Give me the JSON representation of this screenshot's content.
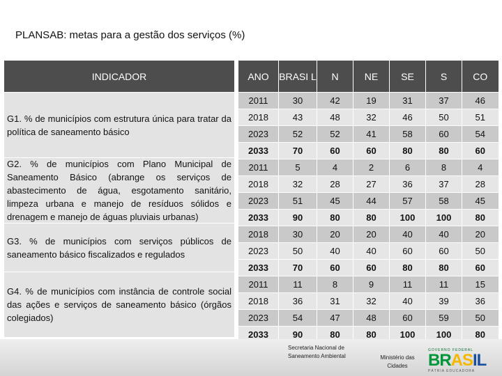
{
  "title": "PLANSAB: metas para a gestão dos serviços (%)",
  "table": {
    "indicator_header": "INDICADOR",
    "headers": [
      "ANO",
      "BRASI L",
      "N",
      "NE",
      "SE",
      "S",
      "CO"
    ],
    "indicators": [
      {
        "text": "G1. % de municípios com estrutura única para tratar da política de saneamento básico"
      },
      {
        "text": "G2. % de municípios com Plano Municipal de Saneamento Básico (abrange os serviços de abastecimento de água, esgotamento sanitário, limpeza urbana e manejo de resíduos sólidos e drenagem e manejo de águas pluviais urbanas)"
      },
      {
        "text": "G3. % de municípios com serviços públicos de saneamento básico fiscalizados e regulados"
      },
      {
        "text": "G4. % de municípios com instância de controle social das ações e serviços de saneamento básico (órgãos colegiados)"
      }
    ],
    "rows": [
      [
        "2011",
        "30",
        "42",
        "19",
        "31",
        "37",
        "46"
      ],
      [
        "2018",
        "43",
        "48",
        "32",
        "46",
        "50",
        "51"
      ],
      [
        "2023",
        "52",
        "52",
        "41",
        "58",
        "60",
        "54"
      ],
      [
        "2033",
        "70",
        "60",
        "60",
        "80",
        "80",
        "60"
      ],
      [
        "2011",
        "5",
        "4",
        "2",
        "6",
        "8",
        "4"
      ],
      [
        "2018",
        "32",
        "28",
        "27",
        "36",
        "37",
        "28"
      ],
      [
        "2023",
        "51",
        "45",
        "44",
        "57",
        "58",
        "45"
      ],
      [
        "2033",
        "90",
        "80",
        "80",
        "100",
        "100",
        "80"
      ],
      [
        "2018",
        "30",
        "20",
        "20",
        "40",
        "40",
        "20"
      ],
      [
        "2023",
        "50",
        "40",
        "40",
        "60",
        "60",
        "50"
      ],
      [
        "2033",
        "70",
        "60",
        "60",
        "80",
        "80",
        "60"
      ],
      [
        "2011",
        "11",
        "8",
        "9",
        "11",
        "11",
        "15"
      ],
      [
        "2018",
        "36",
        "31",
        "32",
        "40",
        "39",
        "36"
      ],
      [
        "2023",
        "54",
        "47",
        "48",
        "60",
        "59",
        "50"
      ],
      [
        "2033",
        "90",
        "80",
        "80",
        "100",
        "100",
        "80"
      ]
    ]
  },
  "footer": {
    "secretaria_line1": "Secretaria Nacional de",
    "secretaria_line2": "Saneamento Ambiental",
    "ministerio_line1": "Ministério das",
    "ministerio_line2": "Cidades",
    "logo_top": "GOVERNO FEDERAL",
    "logo_main": "BRASIL",
    "logo_bottom": "PÁTRIA EDUCADORA"
  }
}
